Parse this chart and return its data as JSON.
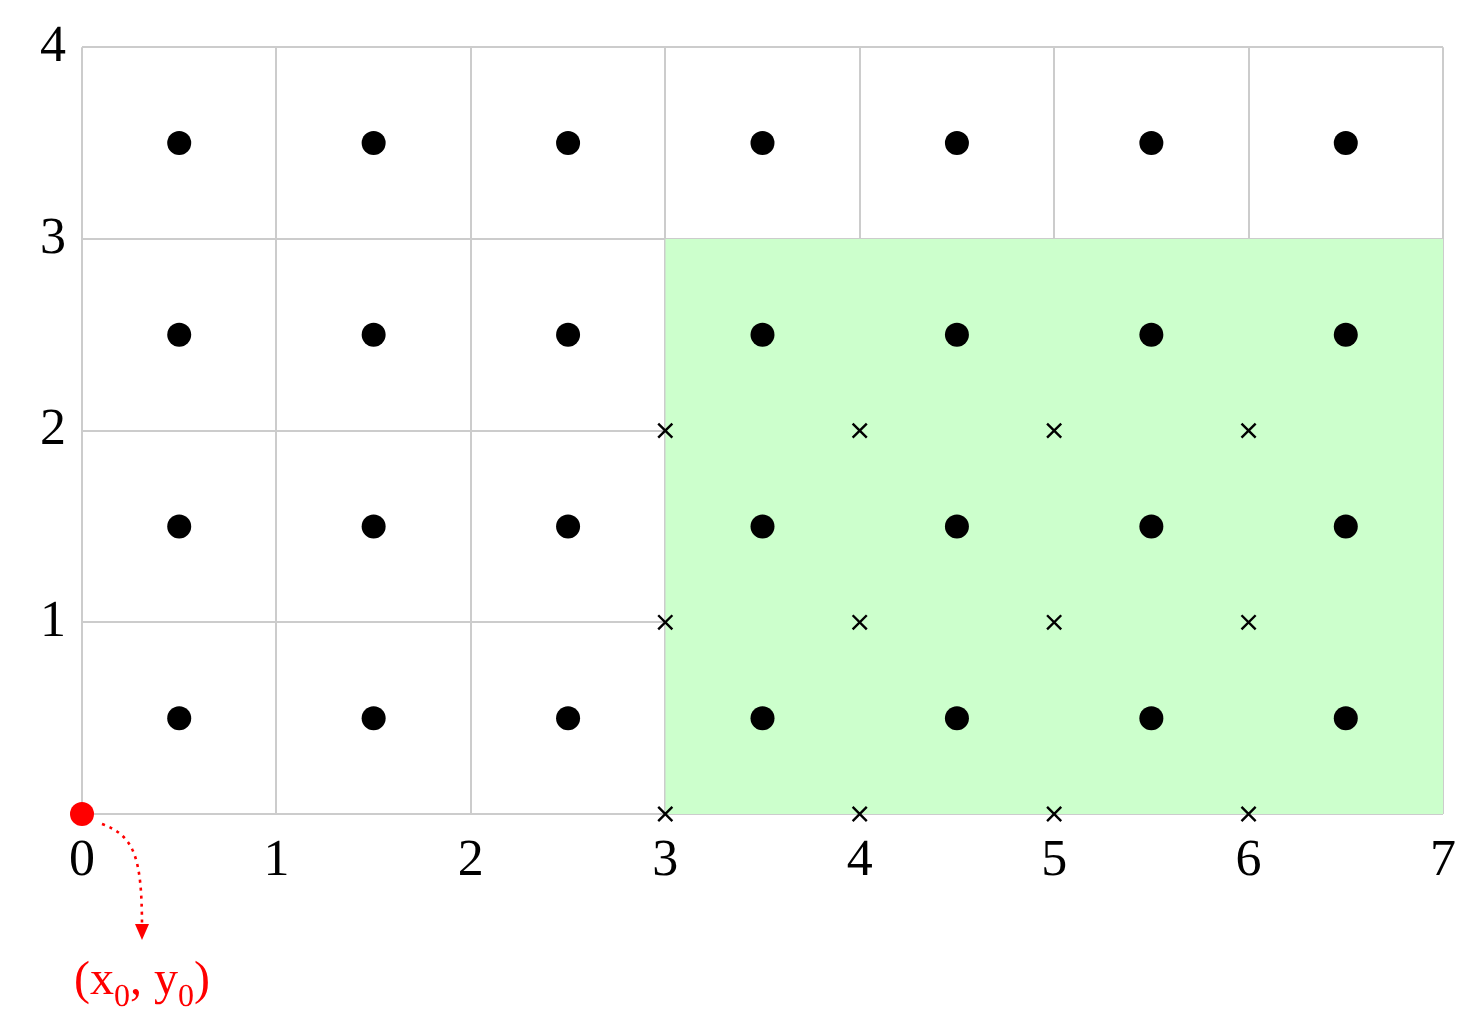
{
  "chart_data": {
    "type": "scatter",
    "xlim": [
      0,
      7
    ],
    "ylim": [
      0,
      4
    ],
    "xticks": [
      0,
      1,
      2,
      3,
      4,
      5,
      6,
      7
    ],
    "yticks": [
      {
        "value": 0,
        "label": null
      },
      1,
      2,
      3,
      4
    ],
    "grid": true,
    "legend": false,
    "series": [
      {
        "type": "area",
        "color": "#ccffcc",
        "x": [
          3,
          7
        ],
        "values": [
          3,
          3
        ]
      },
      {
        "color": "#000000",
        "marker": "circle",
        "x": [
          0.5,
          1.5,
          2.5,
          3.5,
          4.5,
          5.5,
          6.5,
          0.5,
          1.5,
          2.5,
          3.5,
          4.5,
          5.5,
          6.5,
          0.5,
          1.5,
          2.5,
          3.5,
          4.5,
          5.5,
          6.5,
          0.5,
          1.5,
          2.5,
          3.5,
          4.5,
          5.5,
          6.5
        ],
        "values": [
          3.5,
          3.5,
          3.5,
          3.5,
          3.5,
          3.5,
          3.5,
          2.5,
          2.5,
          2.5,
          2.5,
          2.5,
          2.5,
          2.5,
          1.5,
          1.5,
          1.5,
          1.5,
          1.5,
          1.5,
          1.5,
          0.5,
          0.5,
          0.5,
          0.5,
          0.5,
          0.5,
          0.5
        ]
      },
      {
        "color": "#000000",
        "marker": "cross",
        "x": [
          3,
          4,
          5,
          6,
          3,
          4,
          5,
          6,
          3,
          4,
          5,
          6
        ],
        "values": [
          2,
          2,
          2,
          2,
          1,
          1,
          1,
          1,
          0,
          0,
          0,
          0
        ]
      },
      {
        "color": "#ff0000",
        "marker": "circle",
        "x": [
          0
        ],
        "values": [
          0
        ]
      }
    ],
    "annotations": [
      {
        "text": "(x$_{0}$, y$_{0}$)",
        "x": 0,
        "y": 0
      }
    ]
  }
}
